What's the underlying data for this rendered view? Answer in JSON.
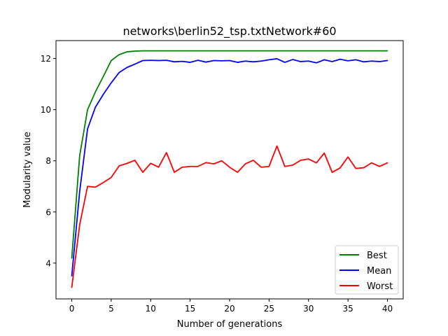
{
  "chart_data": {
    "type": "line",
    "title": "networks\\berlin52_tsp.txtNetwork#60",
    "xlabel": "Number of generations",
    "ylabel": "Modularity value",
    "xlim": [
      -2,
      42
    ],
    "ylim": [
      2.6,
      12.7
    ],
    "xticks": [
      0,
      5,
      10,
      15,
      20,
      25,
      30,
      35,
      40
    ],
    "yticks": [
      4,
      6,
      8,
      10,
      12
    ],
    "grid": false,
    "legend_position": "lower-right",
    "x": [
      0,
      1,
      2,
      3,
      4,
      5,
      6,
      7,
      8,
      9,
      10,
      11,
      12,
      13,
      14,
      15,
      16,
      17,
      18,
      19,
      20,
      21,
      22,
      23,
      24,
      25,
      26,
      27,
      28,
      29,
      30,
      31,
      32,
      33,
      34,
      35,
      36,
      37,
      38,
      39,
      40
    ],
    "series": [
      {
        "name": "Best",
        "color": "#008000",
        "values": [
          4.2,
          8.2,
          10.0,
          10.7,
          11.3,
          11.92,
          12.15,
          12.26,
          12.29,
          12.3,
          12.3,
          12.3,
          12.3,
          12.3,
          12.3,
          12.3,
          12.3,
          12.3,
          12.3,
          12.3,
          12.3,
          12.3,
          12.3,
          12.3,
          12.3,
          12.3,
          12.3,
          12.3,
          12.3,
          12.3,
          12.3,
          12.3,
          12.3,
          12.3,
          12.3,
          12.3,
          12.3,
          12.3,
          12.3,
          12.3,
          12.3
        ]
      },
      {
        "name": "Mean",
        "color": "#0000ff",
        "values": [
          3.5,
          6.8,
          9.25,
          10.1,
          10.6,
          11.05,
          11.45,
          11.65,
          11.78,
          11.92,
          11.93,
          11.92,
          11.93,
          11.87,
          11.89,
          11.85,
          11.93,
          11.86,
          11.92,
          11.91,
          11.92,
          11.85,
          11.9,
          11.87,
          11.9,
          11.95,
          11.99,
          11.85,
          11.96,
          11.88,
          11.9,
          11.83,
          11.95,
          11.88,
          11.97,
          11.91,
          11.95,
          11.87,
          11.9,
          11.88,
          11.92
        ]
      },
      {
        "name": "Worst",
        "color": "#ff0000",
        "values": [
          3.05,
          5.5,
          7.0,
          6.97,
          7.15,
          7.35,
          7.8,
          7.9,
          8.02,
          7.55,
          7.9,
          7.75,
          8.32,
          7.55,
          7.75,
          7.78,
          7.78,
          7.93,
          7.88,
          8.0,
          7.75,
          7.55,
          7.88,
          8.02,
          7.75,
          7.78,
          8.58,
          7.78,
          7.83,
          8.02,
          8.07,
          7.92,
          8.3,
          7.55,
          7.72,
          8.15,
          7.7,
          7.73,
          7.92,
          7.78,
          7.92
        ]
      }
    ]
  }
}
